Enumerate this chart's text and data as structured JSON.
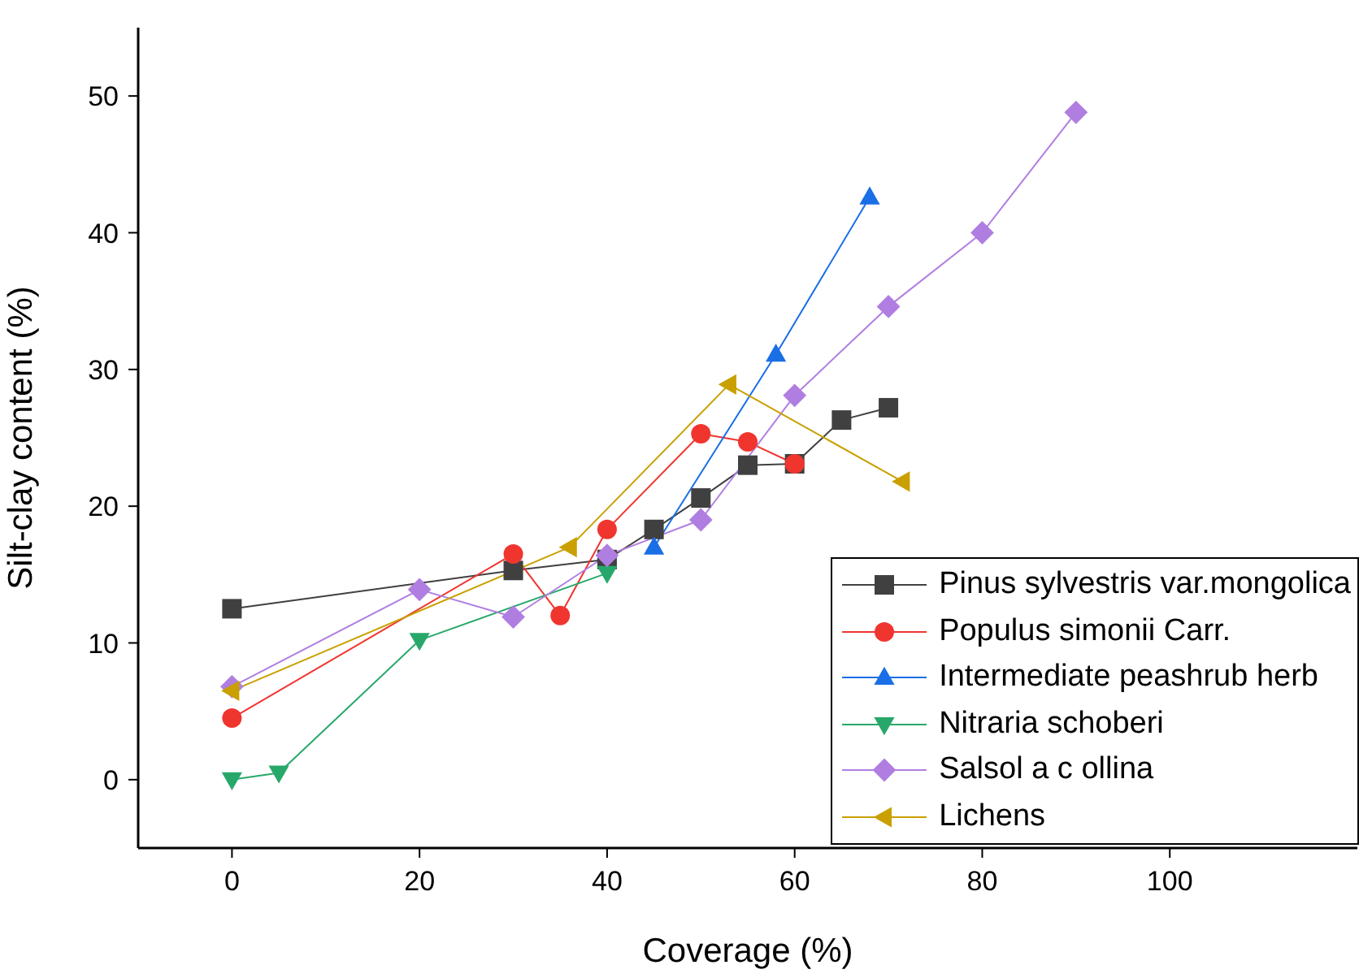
{
  "chart_data": {
    "type": "line",
    "xlabel": "Coverage (%)",
    "ylabel": "Silt-clay content (%)",
    "xlim": [
      -10,
      120
    ],
    "xticks": [
      0,
      20,
      40,
      60,
      80,
      100
    ],
    "ylim": [
      -5,
      55
    ],
    "yticks": [
      0,
      10,
      20,
      30,
      40,
      50
    ],
    "grid": false,
    "legend": "bottom right",
    "series": [
      {
        "name": "Pinus sylvestris var.mongolica",
        "color": "#404040",
        "marker": "square",
        "x": [
          0,
          30,
          40,
          45,
          50,
          55,
          60,
          65,
          70
        ],
        "values": [
          12.5,
          15.3,
          16.1,
          18.3,
          20.6,
          23,
          23.1,
          26.3,
          27.2
        ]
      },
      {
        "name": "Populus simonii Carr.",
        "color": "#f0352f",
        "marker": "circle",
        "x": [
          0,
          30,
          35,
          40,
          50,
          55,
          60
        ],
        "values": [
          4.5,
          16.5,
          12,
          18.3,
          25.3,
          24.7,
          23.1
        ]
      },
      {
        "name": "Intermediate peashrub herb",
        "color": "#1a6ee6",
        "marker": "triangle",
        "x": [
          45,
          58,
          68
        ],
        "values": [
          17,
          31.1,
          42.6
        ]
      },
      {
        "name": "Nitraria schoberi",
        "color": "#27a86a",
        "marker": "triangle-down",
        "x": [
          0,
          5,
          20,
          40
        ],
        "values": [
          0,
          0.5,
          10.2,
          15.1
        ]
      },
      {
        "name": "Salsol a c ollina",
        "color": "#b07ee0",
        "marker": "diamond",
        "x": [
          0,
          20,
          30,
          40,
          50,
          60,
          70,
          80,
          90
        ],
        "values": [
          6.8,
          13.9,
          11.9,
          16.4,
          19,
          28.1,
          34.6,
          40,
          48.8
        ]
      },
      {
        "name": "Lichens",
        "color": "#c9a000",
        "marker": "triangle-left",
        "x": [
          0,
          36,
          53,
          71.5
        ],
        "values": [
          6.5,
          17,
          28.9,
          21.8
        ]
      }
    ]
  }
}
